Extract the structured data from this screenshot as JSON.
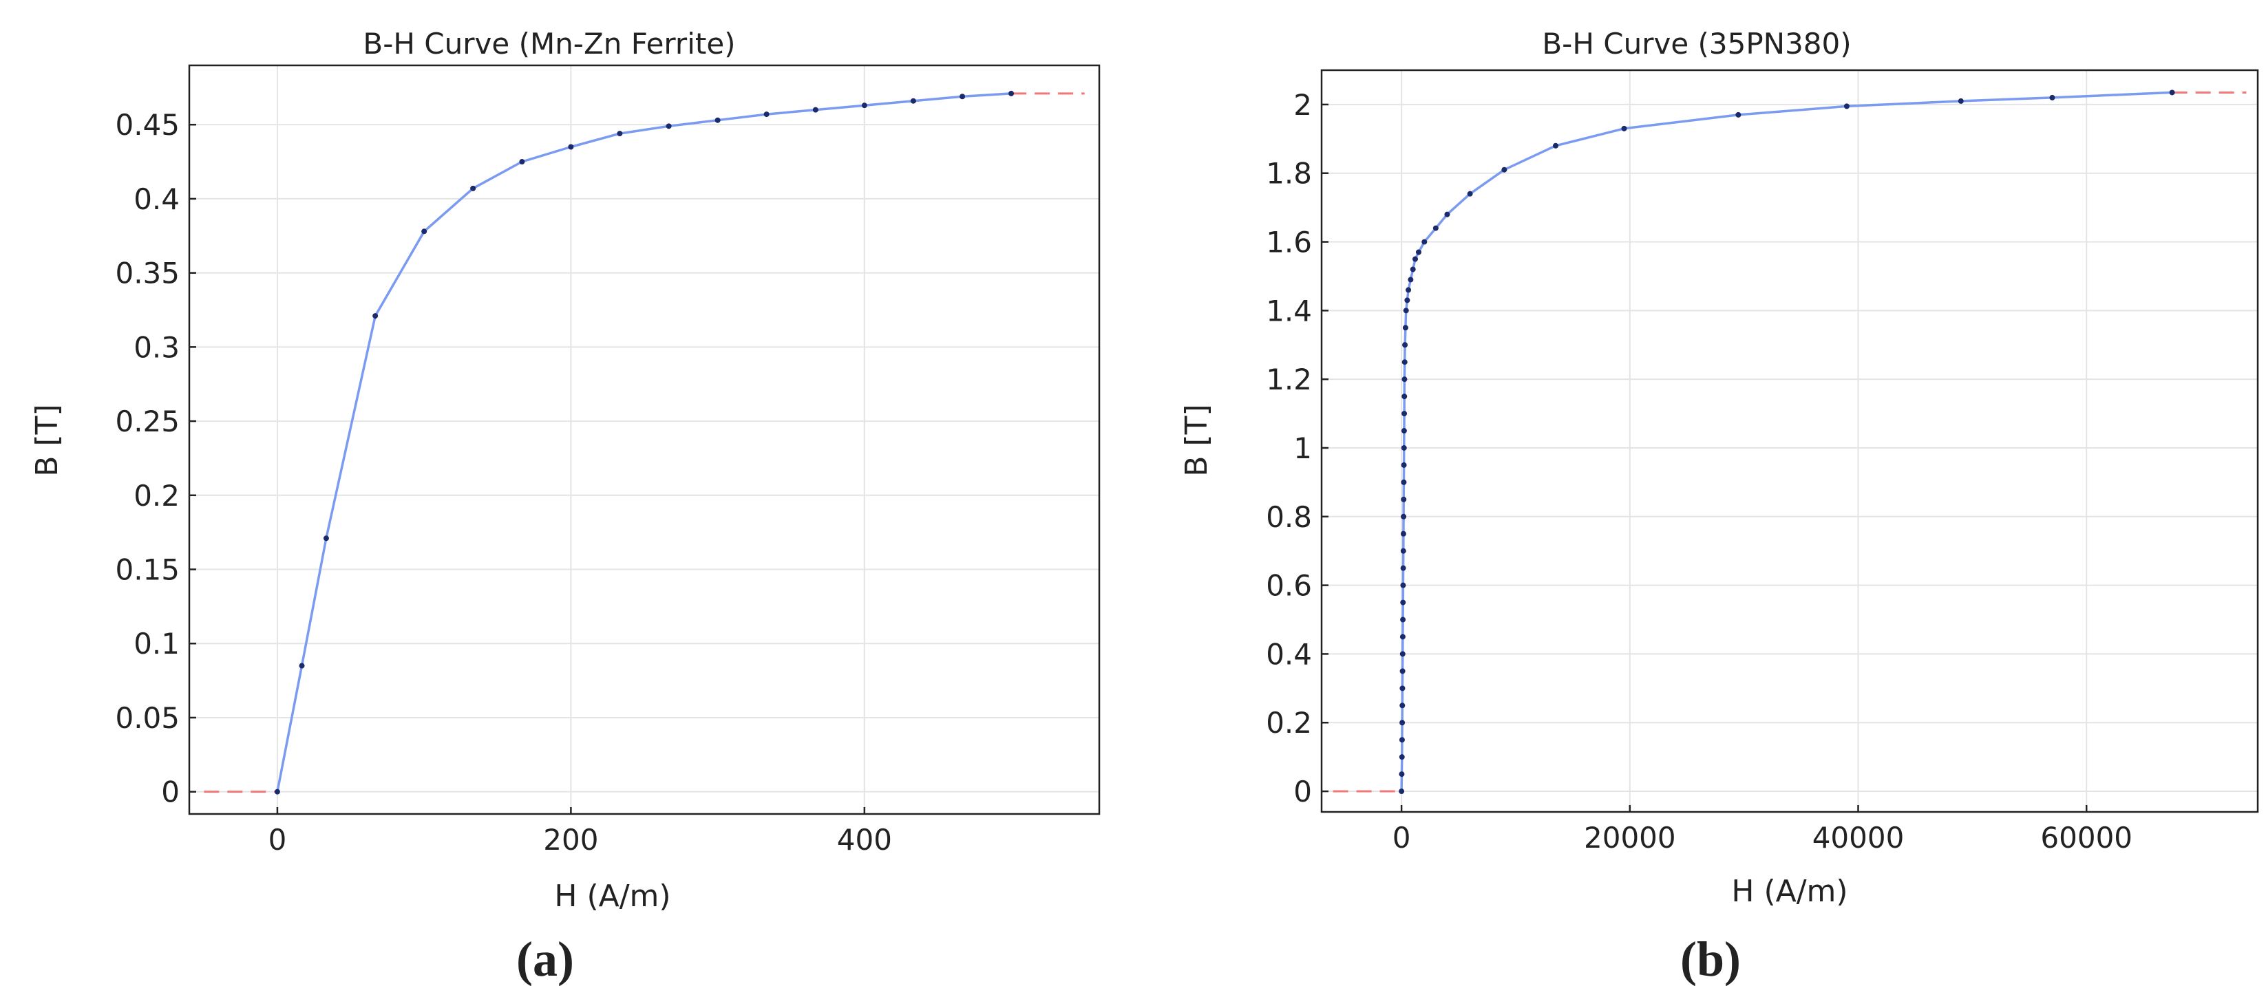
{
  "colors": {
    "curve": "#7b9bf2",
    "marker": "#1a2a6a",
    "extrapolation": "#f07878",
    "grid": "#e4e4e4",
    "axes": "#222222"
  },
  "chart_data": [
    {
      "type": "line",
      "panel_label": "(a)",
      "title": "B-H Curve (Mn-Zn Ferrite)",
      "xlabel": "H (A/m)",
      "ylabel": "B [T]",
      "xlim": [
        -60,
        560
      ],
      "ylim": [
        -0.015,
        0.49
      ],
      "xticks": [
        0,
        200,
        400
      ],
      "xtick_labels": [
        "0",
        "200",
        "400"
      ],
      "yticks": [
        0,
        0.05,
        0.1,
        0.15,
        0.2,
        0.25,
        0.3,
        0.35,
        0.4,
        0.45
      ],
      "ytick_labels": [
        "0",
        "0.05",
        "0.1",
        "0.15",
        "0.2",
        "0.25",
        "0.3",
        "0.35",
        "0.4",
        "0.45"
      ],
      "grid": true,
      "series": [
        {
          "x": [
            0,
            16.7,
            33.3,
            66.7,
            100,
            133.3,
            166.7,
            200,
            233.3,
            266.7,
            300,
            333.3,
            366.7,
            400,
            433.3,
            466.7,
            500
          ],
          "y": [
            0,
            0.085,
            0.171,
            0.321,
            0.378,
            0.407,
            0.425,
            0.435,
            0.444,
            0.449,
            0.453,
            0.457,
            0.46,
            0.463,
            0.466,
            0.469,
            0.471
          ]
        }
      ],
      "extrapolation": [
        {
          "x": [
            -50,
            0
          ],
          "y": [
            0,
            0
          ]
        },
        {
          "x": [
            500,
            550
          ],
          "y": [
            0.471,
            0.471
          ]
        }
      ]
    },
    {
      "type": "line",
      "panel_label": "(b)",
      "title": "B-H Curve (35PN380)",
      "xlabel": "H (A/m)",
      "ylabel": "B [T]",
      "xlim": [
        -7000,
        75000
      ],
      "ylim": [
        -0.06,
        2.1
      ],
      "xticks": [
        0,
        20000,
        40000,
        60000
      ],
      "xtick_labels": [
        "0",
        "20000",
        "40000",
        "60000"
      ],
      "yticks": [
        0,
        0.2,
        0.4,
        0.6,
        0.8,
        1,
        1.2,
        1.4,
        1.6,
        1.8,
        2
      ],
      "ytick_labels": [
        "0",
        "0.2",
        "0.4",
        "0.6",
        "0.8",
        "1",
        "1.2",
        "1.4",
        "1.6",
        "1.8",
        "2"
      ],
      "grid": true,
      "series": [
        {
          "x": [
            0,
            20,
            40,
            50,
            60,
            70,
            80,
            90,
            100,
            110,
            120,
            130,
            140,
            150,
            160,
            170,
            180,
            190,
            200,
            210,
            220,
            230,
            240,
            250,
            260,
            280,
            300,
            350,
            400,
            500,
            600,
            800,
            1000,
            1200,
            1500,
            2000,
            3000,
            4000,
            6000,
            9000,
            13500,
            19500,
            29500,
            39000,
            49000,
            57000,
            67500
          ],
          "y": [
            0,
            0.05,
            0.1,
            0.15,
            0.2,
            0.25,
            0.3,
            0.35,
            0.4,
            0.45,
            0.5,
            0.55,
            0.6,
            0.65,
            0.7,
            0.75,
            0.8,
            0.85,
            0.9,
            0.95,
            1.0,
            1.05,
            1.1,
            1.15,
            1.2,
            1.25,
            1.3,
            1.35,
            1.4,
            1.43,
            1.46,
            1.49,
            1.52,
            1.55,
            1.57,
            1.6,
            1.64,
            1.68,
            1.74,
            1.81,
            1.88,
            1.93,
            1.97,
            1.995,
            2.01,
            2.02,
            2.035
          ]
        }
      ],
      "extrapolation": [
        {
          "x": [
            -6000,
            0
          ],
          "y": [
            0,
            0
          ]
        },
        {
          "x": [
            67500,
            74000
          ],
          "y": [
            2.035,
            2.035
          ]
        }
      ]
    }
  ]
}
